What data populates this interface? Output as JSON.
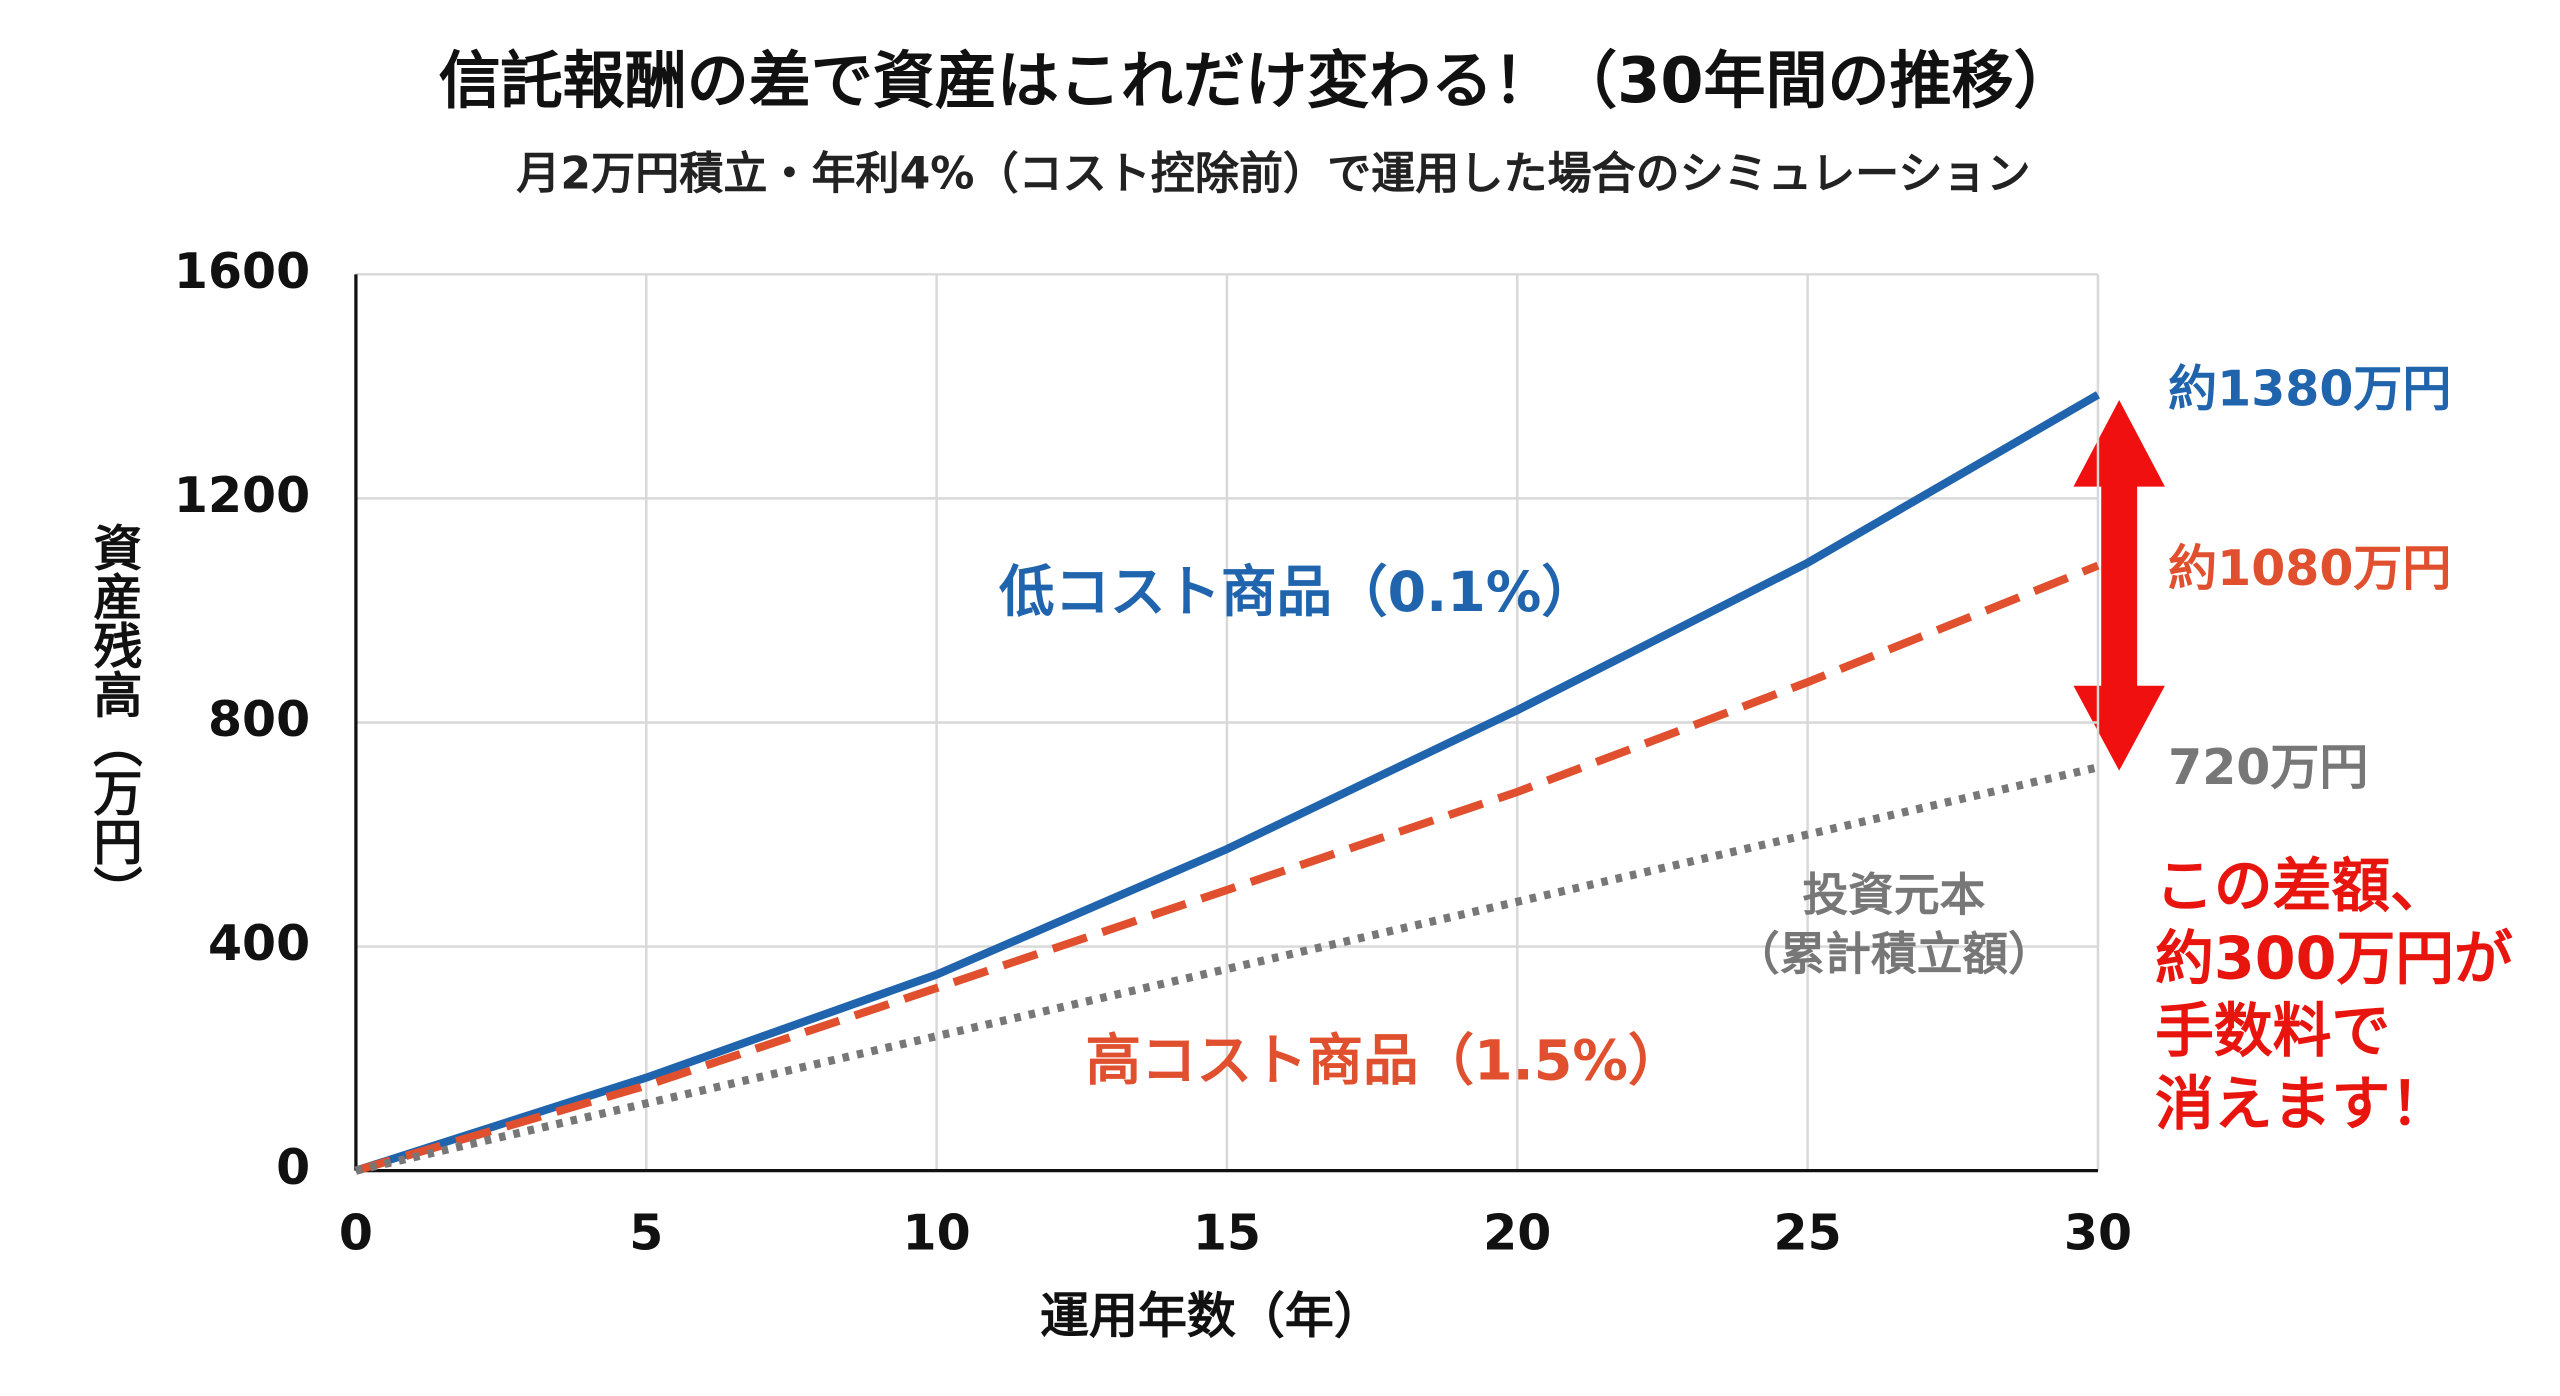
{
  "chart_data": {
    "type": "line",
    "title": "信託報酬の差で資産はこれだけ変わる！（30年間の推移）",
    "subtitle": "月2万円積立・年利4%（コスト控除前）で運用した場合のシミュレーション",
    "x_label": "運用年数（年）",
    "y_label": "資産残高（万円）",
    "x": [
      0,
      5,
      10,
      15,
      20,
      25,
      30
    ],
    "series": [
      {
        "name": "低コスト商品（0.1%）",
        "color": "#1f64ad",
        "style": "solid",
        "values": [
          0,
          166,
          350,
          574,
          822,
          1085,
          1385
        ],
        "end_label": "約1380万円"
      },
      {
        "name": "高コスト商品（1.5%）",
        "color": "#e0502e",
        "style": "dashed",
        "values": [
          0,
          152,
          326,
          501,
          676,
          872,
          1080
        ],
        "end_label": "約1080万円"
      },
      {
        "name": "投資元本",
        "color": "#777777",
        "style": "dotted",
        "values": [
          0,
          120,
          240,
          360,
          480,
          600,
          720
        ],
        "end_label": "720万円",
        "name_note": "（累計積立額）"
      }
    ],
    "note": {
      "color": "#e8150f",
      "lines": [
        "この差額、",
        "約300万円が",
        "手数料で",
        "消えます！"
      ]
    },
    "xlim": [
      0,
      30
    ],
    "xticks": [
      0,
      5,
      10,
      15,
      20,
      25,
      30
    ],
    "ylim": [
      0,
      1600
    ],
    "yticks": [
      0,
      400,
      800,
      1200,
      1600
    ],
    "grid": true
  }
}
